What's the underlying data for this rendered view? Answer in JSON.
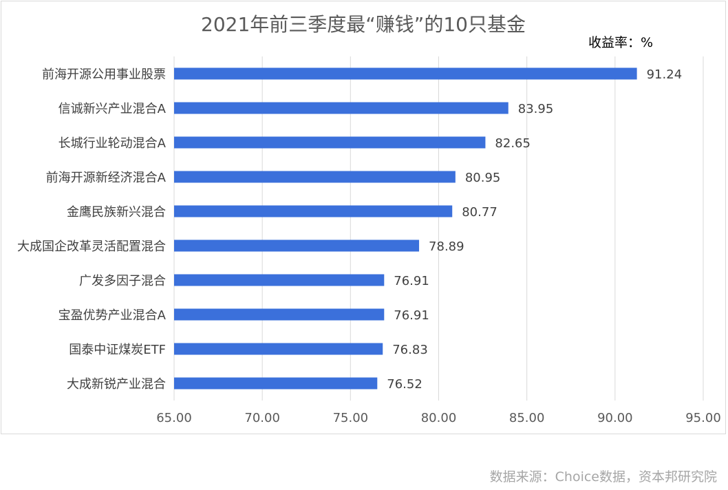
{
  "chart_data": {
    "type": "bar",
    "orientation": "horizontal",
    "title": "2021年前三季度最“赚钱”的10只基金",
    "unit_label": "收益率：%",
    "categories": [
      "前海开源公用事业股票",
      "信诚新兴产业混合A",
      "长城行业轮动混合A",
      "前海开源新经济混合A",
      "金鹰民族新兴混合",
      "大成国企改革灵活配置混合",
      "广发多因子混合",
      "宝盈优势产业混合A",
      "国泰中证煤炭ETF",
      "大成新锐产业混合"
    ],
    "values": [
      91.24,
      83.95,
      82.65,
      80.95,
      80.77,
      78.89,
      76.91,
      76.91,
      76.83,
      76.52
    ],
    "value_labels": [
      "91.24",
      "83.95",
      "82.65",
      "80.95",
      "80.77",
      "78.89",
      "76.91",
      "76.91",
      "76.83",
      "76.52"
    ],
    "xlim": [
      65,
      95
    ],
    "xticks": [
      "65.00",
      "70.00",
      "75.00",
      "80.00",
      "85.00",
      "90.00",
      "95.00"
    ],
    "grid": true,
    "bar_color": "#3b70db",
    "grid_color": "#d9d9d9"
  },
  "source": "数据来源：Choice数据，资本邦研究院"
}
